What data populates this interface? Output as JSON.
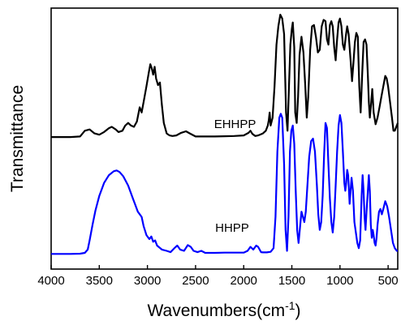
{
  "chart_data": {
    "type": "line",
    "xlabel": "Wavenumbers(cm",
    "xlabel_superscript": "-1",
    "xlabel_suffix": ")",
    "ylabel": "Transmittance",
    "xlim": [
      4000,
      400
    ],
    "x_reversed": true,
    "y_ticks_shown": false,
    "ylim": [
      0,
      1
    ],
    "x_ticks": [
      "4000",
      "3500",
      "3000",
      "2500",
      "2000",
      "1500",
      "1000",
      "500"
    ],
    "grid": false,
    "series": [
      {
        "name": "EHHPP",
        "color": "#000000",
        "points": [
          [
            4000,
            0.506
          ],
          [
            3800,
            0.506
          ],
          [
            3700,
            0.508
          ],
          [
            3650,
            0.53
          ],
          [
            3600,
            0.535
          ],
          [
            3550,
            0.52
          ],
          [
            3500,
            0.515
          ],
          [
            3450,
            0.525
          ],
          [
            3400,
            0.54
          ],
          [
            3370,
            0.545
          ],
          [
            3330,
            0.535
          ],
          [
            3300,
            0.525
          ],
          [
            3260,
            0.53
          ],
          [
            3230,
            0.55
          ],
          [
            3200,
            0.56
          ],
          [
            3170,
            0.55
          ],
          [
            3140,
            0.545
          ],
          [
            3110,
            0.565
          ],
          [
            3080,
            0.62
          ],
          [
            3060,
            0.6
          ],
          [
            3040,
            0.64
          ],
          [
            3010,
            0.7
          ],
          [
            2985,
            0.755
          ],
          [
            2970,
            0.785
          ],
          [
            2955,
            0.77
          ],
          [
            2940,
            0.745
          ],
          [
            2925,
            0.775
          ],
          [
            2910,
            0.73
          ],
          [
            2890,
            0.705
          ],
          [
            2870,
            0.715
          ],
          [
            2850,
            0.63
          ],
          [
            2830,
            0.56
          ],
          [
            2800,
            0.52
          ],
          [
            2770,
            0.512
          ],
          [
            2740,
            0.51
          ],
          [
            2700,
            0.512
          ],
          [
            2650,
            0.522
          ],
          [
            2600,
            0.528
          ],
          [
            2560,
            0.52
          ],
          [
            2500,
            0.508
          ],
          [
            2400,
            0.508
          ],
          [
            2300,
            0.508
          ],
          [
            2200,
            0.509
          ],
          [
            2100,
            0.51
          ],
          [
            2000,
            0.512
          ],
          [
            1950,
            0.522
          ],
          [
            1930,
            0.53
          ],
          [
            1910,
            0.518
          ],
          [
            1880,
            0.51
          ],
          [
            1850,
            0.512
          ],
          [
            1800,
            0.52
          ],
          [
            1770,
            0.53
          ],
          [
            1750,
            0.55
          ],
          [
            1740,
            0.57
          ],
          [
            1730,
            0.6
          ],
          [
            1720,
            0.55
          ],
          [
            1700,
            0.58
          ],
          [
            1680,
            0.7
          ],
          [
            1660,
            0.86
          ],
          [
            1640,
            0.93
          ],
          [
            1620,
            0.975
          ],
          [
            1600,
            0.96
          ],
          [
            1580,
            0.9
          ],
          [
            1560,
            0.6
          ],
          [
            1545,
            0.53
          ],
          [
            1530,
            0.7
          ],
          [
            1515,
            0.86
          ],
          [
            1500,
            0.92
          ],
          [
            1490,
            0.945
          ],
          [
            1475,
            0.85
          ],
          [
            1465,
            0.6
          ],
          [
            1450,
            0.56
          ],
          [
            1435,
            0.66
          ],
          [
            1420,
            0.82
          ],
          [
            1400,
            0.89
          ],
          [
            1380,
            0.83
          ],
          [
            1360,
            0.7
          ],
          [
            1345,
            0.58
          ],
          [
            1330,
            0.66
          ],
          [
            1310,
            0.84
          ],
          [
            1290,
            0.93
          ],
          [
            1270,
            0.935
          ],
          [
            1250,
            0.89
          ],
          [
            1230,
            0.83
          ],
          [
            1210,
            0.84
          ],
          [
            1190,
            0.93
          ],
          [
            1170,
            0.955
          ],
          [
            1150,
            0.95
          ],
          [
            1135,
            0.88
          ],
          [
            1120,
            0.86
          ],
          [
            1105,
            0.935
          ],
          [
            1090,
            0.95
          ],
          [
            1075,
            0.93
          ],
          [
            1060,
            0.85
          ],
          [
            1045,
            0.8
          ],
          [
            1030,
            0.88
          ],
          [
            1015,
            0.945
          ],
          [
            1000,
            0.96
          ],
          [
            985,
            0.93
          ],
          [
            970,
            0.86
          ],
          [
            955,
            0.84
          ],
          [
            940,
            0.89
          ],
          [
            925,
            0.93
          ],
          [
            910,
            0.9
          ],
          [
            890,
            0.8
          ],
          [
            875,
            0.72
          ],
          [
            860,
            0.79
          ],
          [
            845,
            0.87
          ],
          [
            830,
            0.905
          ],
          [
            815,
            0.89
          ],
          [
            800,
            0.7
          ],
          [
            785,
            0.6
          ],
          [
            770,
            0.74
          ],
          [
            755,
            0.87
          ],
          [
            740,
            0.88
          ],
          [
            725,
            0.86
          ],
          [
            710,
            0.74
          ],
          [
            700,
            0.64
          ],
          [
            690,
            0.58
          ],
          [
            680,
            0.62
          ],
          [
            665,
            0.69
          ],
          [
            650,
            0.6
          ],
          [
            630,
            0.555
          ],
          [
            610,
            0.58
          ],
          [
            590,
            0.62
          ],
          [
            570,
            0.66
          ],
          [
            550,
            0.7
          ],
          [
            530,
            0.74
          ],
          [
            515,
            0.73
          ],
          [
            500,
            0.7
          ],
          [
            480,
            0.64
          ],
          [
            460,
            0.58
          ],
          [
            445,
            0.53
          ],
          [
            430,
            0.53
          ],
          [
            410,
            0.55
          ],
          [
            400,
            0.56
          ]
        ]
      },
      {
        "name": "HHPP",
        "color": "#0000ff",
        "points": [
          [
            4000,
            0.058
          ],
          [
            3800,
            0.058
          ],
          [
            3700,
            0.059
          ],
          [
            3650,
            0.062
          ],
          [
            3620,
            0.075
          ],
          [
            3600,
            0.11
          ],
          [
            3570,
            0.17
          ],
          [
            3540,
            0.225
          ],
          [
            3500,
            0.28
          ],
          [
            3450,
            0.33
          ],
          [
            3400,
            0.36
          ],
          [
            3350,
            0.375
          ],
          [
            3320,
            0.378
          ],
          [
            3290,
            0.372
          ],
          [
            3250,
            0.355
          ],
          [
            3200,
            0.32
          ],
          [
            3150,
            0.27
          ],
          [
            3100,
            0.22
          ],
          [
            3060,
            0.2
          ],
          [
            3040,
            0.165
          ],
          [
            3010,
            0.13
          ],
          [
            2980,
            0.115
          ],
          [
            2960,
            0.125
          ],
          [
            2940,
            0.105
          ],
          [
            2920,
            0.11
          ],
          [
            2900,
            0.09
          ],
          [
            2850,
            0.075
          ],
          [
            2800,
            0.07
          ],
          [
            2760,
            0.065
          ],
          [
            2720,
            0.08
          ],
          [
            2690,
            0.09
          ],
          [
            2660,
            0.075
          ],
          [
            2620,
            0.07
          ],
          [
            2580,
            0.092
          ],
          [
            2550,
            0.085
          ],
          [
            2520,
            0.07
          ],
          [
            2480,
            0.065
          ],
          [
            2440,
            0.07
          ],
          [
            2400,
            0.062
          ],
          [
            2300,
            0.062
          ],
          [
            2200,
            0.063
          ],
          [
            2100,
            0.063
          ],
          [
            2000,
            0.063
          ],
          [
            1960,
            0.07
          ],
          [
            1930,
            0.085
          ],
          [
            1900,
            0.075
          ],
          [
            1870,
            0.09
          ],
          [
            1850,
            0.085
          ],
          [
            1820,
            0.065
          ],
          [
            1800,
            0.064
          ],
          [
            1760,
            0.064
          ],
          [
            1720,
            0.066
          ],
          [
            1690,
            0.08
          ],
          [
            1670,
            0.2
          ],
          [
            1650,
            0.45
          ],
          [
            1630,
            0.58
          ],
          [
            1615,
            0.595
          ],
          [
            1600,
            0.58
          ],
          [
            1580,
            0.4
          ],
          [
            1565,
            0.15
          ],
          [
            1550,
            0.07
          ],
          [
            1535,
            0.2
          ],
          [
            1520,
            0.45
          ],
          [
            1505,
            0.53
          ],
          [
            1490,
            0.55
          ],
          [
            1475,
            0.48
          ],
          [
            1460,
            0.3
          ],
          [
            1445,
            0.15
          ],
          [
            1430,
            0.1
          ],
          [
            1415,
            0.16
          ],
          [
            1400,
            0.22
          ],
          [
            1385,
            0.2
          ],
          [
            1370,
            0.18
          ],
          [
            1355,
            0.22
          ],
          [
            1340,
            0.31
          ],
          [
            1320,
            0.43
          ],
          [
            1300,
            0.49
          ],
          [
            1280,
            0.5
          ],
          [
            1260,
            0.45
          ],
          [
            1240,
            0.32
          ],
          [
            1225,
            0.21
          ],
          [
            1210,
            0.15
          ],
          [
            1195,
            0.18
          ],
          [
            1180,
            0.28
          ],
          [
            1165,
            0.44
          ],
          [
            1150,
            0.56
          ],
          [
            1135,
            0.54
          ],
          [
            1120,
            0.4
          ],
          [
            1105,
            0.27
          ],
          [
            1090,
            0.18
          ],
          [
            1075,
            0.14
          ],
          [
            1060,
            0.2
          ],
          [
            1045,
            0.32
          ],
          [
            1030,
            0.45
          ],
          [
            1015,
            0.55
          ],
          [
            1000,
            0.59
          ],
          [
            985,
            0.56
          ],
          [
            970,
            0.45
          ],
          [
            955,
            0.33
          ],
          [
            945,
            0.3
          ],
          [
            935,
            0.33
          ],
          [
            925,
            0.38
          ],
          [
            915,
            0.36
          ],
          [
            900,
            0.25
          ],
          [
            890,
            0.3
          ],
          [
            880,
            0.35
          ],
          [
            865,
            0.3
          ],
          [
            850,
            0.18
          ],
          [
            835,
            0.14
          ],
          [
            820,
            0.1
          ],
          [
            805,
            0.08
          ],
          [
            790,
            0.11
          ],
          [
            775,
            0.28
          ],
          [
            765,
            0.36
          ],
          [
            755,
            0.3
          ],
          [
            745,
            0.2
          ],
          [
            735,
            0.15
          ],
          [
            725,
            0.22
          ],
          [
            710,
            0.3
          ],
          [
            700,
            0.36
          ],
          [
            690,
            0.3
          ],
          [
            680,
            0.17
          ],
          [
            670,
            0.12
          ],
          [
            660,
            0.15
          ],
          [
            650,
            0.13
          ],
          [
            640,
            0.1
          ],
          [
            630,
            0.09
          ],
          [
            620,
            0.12
          ],
          [
            610,
            0.17
          ],
          [
            595,
            0.22
          ],
          [
            580,
            0.23
          ],
          [
            565,
            0.21
          ],
          [
            550,
            0.23
          ],
          [
            530,
            0.26
          ],
          [
            510,
            0.24
          ],
          [
            490,
            0.2
          ],
          [
            470,
            0.15
          ],
          [
            450,
            0.1
          ],
          [
            430,
            0.08
          ],
          [
            410,
            0.07
          ],
          [
            400,
            0.07
          ]
        ]
      }
    ]
  }
}
